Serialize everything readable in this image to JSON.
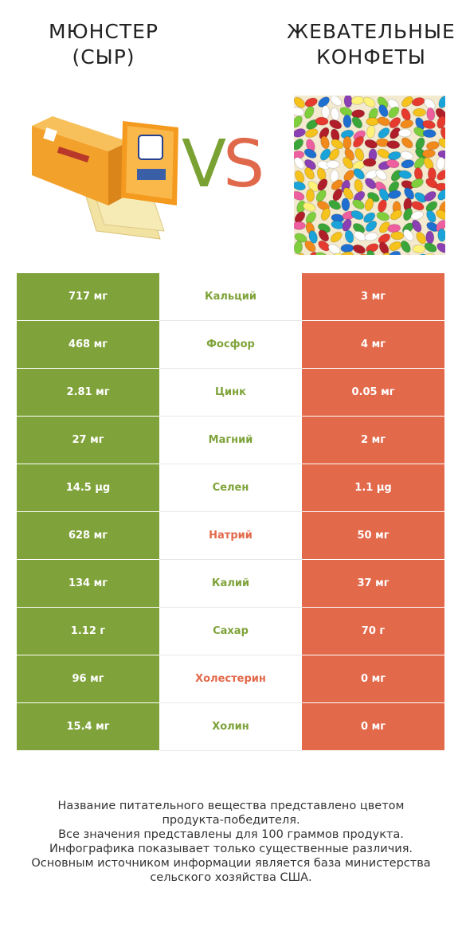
{
  "left_product": {
    "title_line1": "МЮНСТЕР",
    "title_line2": "(СЫР)",
    "color": "#7fa33a"
  },
  "right_product": {
    "title_line1": "ЖЕВАТЕЛЬНЫЕ",
    "title_line2": "КОНФЕТЫ",
    "color": "#e3694b"
  },
  "vs": {
    "v": "V",
    "s": "S"
  },
  "rows": [
    {
      "left": "717 мг",
      "name": "Кальций",
      "right": "3 мг",
      "winner": "left"
    },
    {
      "left": "468 мг",
      "name": "Фосфор",
      "right": "4 мг",
      "winner": "left"
    },
    {
      "left": "2.81 мг",
      "name": "Цинк",
      "right": "0.05 мг",
      "winner": "left"
    },
    {
      "left": "27 мг",
      "name": "Магний",
      "right": "2 мг",
      "winner": "left"
    },
    {
      "left": "14.5 µg",
      "name": "Селен",
      "right": "1.1 µg",
      "winner": "left"
    },
    {
      "left": "628 мг",
      "name": "Натрий",
      "right": "50 мг",
      "winner": "right"
    },
    {
      "left": "134 мг",
      "name": "Калий",
      "right": "37 мг",
      "winner": "left"
    },
    {
      "left": "1.12 г",
      "name": "Сахар",
      "right": "70 г",
      "winner": "left"
    },
    {
      "left": "96 мг",
      "name": "Холестерин",
      "right": "0 мг",
      "winner": "right"
    },
    {
      "left": "15.4 мг",
      "name": "Холин",
      "right": "0 мг",
      "winner": "left"
    }
  ],
  "footer": {
    "line1": "Название питательного вещества представлено цветом",
    "line2": "продукта-победителя.",
    "line3": "Все значения представлены для 100 граммов продукта.",
    "line4": "Инфографика показывает только существенные различия.",
    "line5": "Основным источником информации является база министерства",
    "line6": "сельского хозяйства США."
  }
}
